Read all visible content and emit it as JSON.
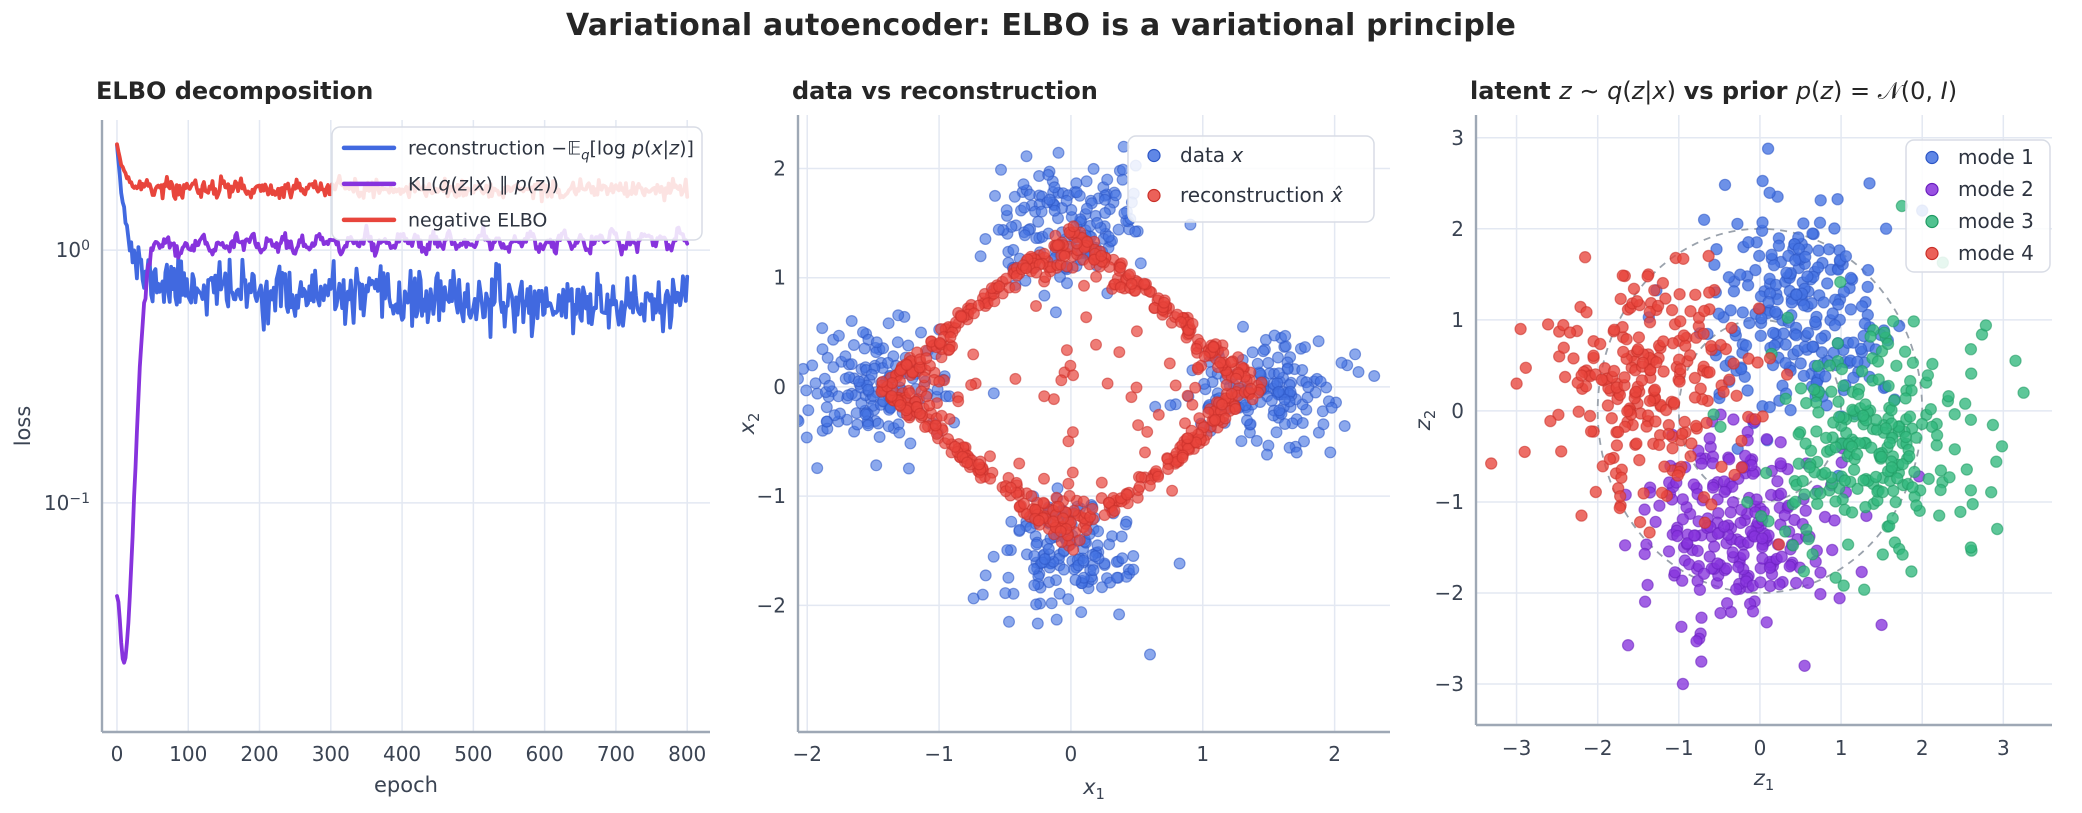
{
  "figure": {
    "title": "Variational autoencoder: ELBO is a variational principle"
  },
  "colors": {
    "blue": "#4169e0",
    "purple": "#8733dd",
    "red": "#e8453c",
    "green": "#31b77c",
    "grid": "#e3e8f2",
    "spine": "#9ea8b5",
    "tick_text": "#3a4352",
    "title_text": "#262626",
    "prior_circle": "#9aa2ac",
    "legend_border": "#d8dce5"
  },
  "chart_data": [
    {
      "id": "elbo-decomposition",
      "type": "line",
      "yscale": "log",
      "grid": true,
      "legend_position": "upper right",
      "title_segments": [
        [
          "ELBO decomposition",
          "b"
        ]
      ],
      "xlabel_segments": [
        [
          "epoch",
          "r"
        ]
      ],
      "ylabel_segments": [
        [
          "loss",
          "r"
        ]
      ],
      "xlim": [
        -21,
        832
      ],
      "ylim": [
        0.0124,
        3.27
      ],
      "x_ticks": [
        {
          "v": 0,
          "label": "0"
        },
        {
          "v": 100,
          "label": "100"
        },
        {
          "v": 200,
          "label": "200"
        },
        {
          "v": 300,
          "label": "300"
        },
        {
          "v": 400,
          "label": "400"
        },
        {
          "v": 500,
          "label": "500"
        },
        {
          "v": 600,
          "label": "600"
        },
        {
          "v": 700,
          "label": "700"
        },
        {
          "v": 800,
          "label": "800"
        }
      ],
      "y_ticks": [
        {
          "v": 1,
          "segments": [
            [
              "10",
              "r"
            ],
            [
              "0",
              "^"
            ]
          ]
        },
        {
          "v": 0.1,
          "segments": [
            [
              "10",
              "r"
            ],
            [
              "−1",
              "^"
            ]
          ]
        }
      ],
      "epochs": {
        "start": 0,
        "end": 800,
        "step": 2
      },
      "series": [
        {
          "name": "reconstruction −Eq[log p(x|z)]",
          "label_segments": [
            [
              "reconstruction −𝔼",
              "r"
            ],
            [
              "q",
              "iv"
            ],
            [
              "[log ",
              "r"
            ],
            [
              "p",
              "i"
            ],
            [
              "(",
              "r"
            ],
            [
              "x",
              "i"
            ],
            [
              "|",
              "r"
            ],
            [
              "z",
              "i"
            ],
            [
              ")]",
              "r"
            ]
          ],
          "model": "recon",
          "color": "#4169e0",
          "line_width": 3.8,
          "seed": 11,
          "params": {
            "start": 2.6,
            "plateau_base": 0.6,
            "plateau_amp": 0.18,
            "plateau_tau": 260,
            "decay_tau": 10,
            "noise_sd": 0.12,
            "noise_ramp": 30
          },
          "observed": {
            "start_value": 2.6,
            "plateau_early": 0.75,
            "final_value": 0.61
          }
        },
        {
          "name": "KL(q(z|x) ‖ p(z))",
          "label_segments": [
            [
              "KL(",
              "r"
            ],
            [
              "q",
              "i"
            ],
            [
              "(",
              "r"
            ],
            [
              "z",
              "i"
            ],
            [
              "|",
              "r"
            ],
            [
              "x",
              "i"
            ],
            [
              ") ∥ ",
              "r"
            ],
            [
              "p",
              "i"
            ],
            [
              "(",
              "r"
            ],
            [
              "z",
              "i"
            ],
            [
              "))",
              "r"
            ]
          ],
          "model": "kl",
          "color": "#8733dd",
          "line_width": 3.8,
          "seed": 22,
          "params": {
            "floor": 0.015,
            "dip_amp": 0.027,
            "dip_tau": 6,
            "plateau": 1.03,
            "rise_mid": 36,
            "rise_width": 5,
            "slow_rise": 6e-05,
            "noise_sd": 0.03,
            "wave1_amp": 0.045,
            "wave1_period": 23,
            "wave2_amp": 0.035,
            "wave2_period": 57,
            "noise_ramp": 50
          },
          "observed": {
            "start_value": 0.042,
            "dip_min": 0.016,
            "dip_epoch": 10,
            "plateau": 1.05,
            "final_value": 1.09
          }
        },
        {
          "name": "negative ELBO",
          "label_segments": [
            [
              "negative ELBO",
              "r"
            ]
          ],
          "model": "elbo",
          "color": "#e8453c",
          "line_width": 3.8,
          "seed": 33,
          "params": {
            "start": 2.62,
            "plateau": 1.76,
            "decay_tau": 9,
            "slow": -4e-05,
            "noise_sd": 0.042,
            "noise_ramp": 25
          },
          "observed": {
            "start_value": 2.62,
            "plateau": 1.74
          }
        }
      ]
    },
    {
      "id": "data-vs-reconstruction",
      "type": "scatter",
      "grid": true,
      "legend_position": "upper right",
      "title_segments": [
        [
          "data vs reconstruction",
          "b"
        ]
      ],
      "xlabel_segments": [
        [
          "x",
          "i"
        ],
        [
          "1",
          "v"
        ]
      ],
      "ylabel_segments": [
        [
          "x",
          "i"
        ],
        [
          "2",
          "v"
        ]
      ],
      "xlim": [
        -2.07,
        2.42
      ],
      "ylim": [
        -3.16,
        2.49
      ],
      "x_ticks": [
        {
          "v": -2,
          "label": "−2"
        },
        {
          "v": -1,
          "label": "−1"
        },
        {
          "v": 0,
          "label": "0"
        },
        {
          "v": 1,
          "label": "1"
        },
        {
          "v": 2,
          "label": "2"
        }
      ],
      "y_ticks": [
        {
          "v": 2,
          "label": "2"
        },
        {
          "v": 1,
          "label": "1"
        },
        {
          "v": 0,
          "label": "0"
        },
        {
          "v": -1,
          "label": "−1"
        },
        {
          "v": -2,
          "label": "−2"
        }
      ],
      "series": [
        {
          "name": "data x",
          "label_segments": [
            [
              "data ",
              "r"
            ],
            [
              "x",
              "i"
            ]
          ],
          "color": "#4472e2",
          "edge": "#2b55c4",
          "alpha": 0.62,
          "radius": 5.4,
          "seed": 101,
          "generator": {
            "kind": "gaussian",
            "means": [
              [
                0,
                1.5
              ],
              [
                1.5,
                0
              ],
              [
                0,
                -1.5
              ],
              [
                -1.5,
                0
              ]
            ],
            "std": 0.28,
            "n_per": 155
          },
          "extra_points": [
            [
              2.3,
              0.1
            ],
            [
              -2.15,
              -0.6
            ],
            [
              0.6,
              -2.45
            ],
            [
              0.4,
              2.2
            ]
          ]
        },
        {
          "name": "reconstruction x̂",
          "label_segments": [
            [
              "reconstruction ",
              "r"
            ],
            [
              "x̂",
              "i"
            ]
          ],
          "color": "#e8453c",
          "edge": "#c93029",
          "alpha": 0.7,
          "radius": 5.4,
          "seed": 202,
          "generator": {
            "kind": "diamond",
            "radius": 1.5,
            "edge_sd": 0.3,
            "inward_sd": 0.12,
            "tangent_sd": 0.012,
            "n": 600,
            "interior_n": 40,
            "interior_jitter": 0.06
          },
          "extra_points": []
        }
      ]
    },
    {
      "id": "latent-vs-prior",
      "type": "scatter",
      "grid": true,
      "legend_position": "upper right",
      "title_segments": [
        [
          "latent ",
          "b"
        ],
        [
          "z",
          "i"
        ],
        [
          " ∼ ",
          "r"
        ],
        [
          "q",
          "i"
        ],
        [
          "(",
          "r"
        ],
        [
          "z",
          "i"
        ],
        [
          "|",
          "r"
        ],
        [
          "x",
          "i"
        ],
        [
          ") ",
          "r"
        ],
        [
          "vs prior ",
          "b"
        ],
        [
          "p",
          "i"
        ],
        [
          "(",
          "r"
        ],
        [
          "z",
          "i"
        ],
        [
          ") = 𝒩(0, ",
          "r"
        ],
        [
          "I",
          "i"
        ],
        [
          ")",
          "r"
        ]
      ],
      "xlabel_segments": [
        [
          "z",
          "i"
        ],
        [
          "1",
          "v"
        ]
      ],
      "ylabel_segments": [
        [
          "z",
          "i"
        ],
        [
          "2",
          "v"
        ]
      ],
      "xlim": [
        -3.5,
        3.6
      ],
      "ylim": [
        -3.45,
        3.25
      ],
      "x_ticks": [
        {
          "v": -3,
          "label": "−3"
        },
        {
          "v": -2,
          "label": "−2"
        },
        {
          "v": -1,
          "label": "−1"
        },
        {
          "v": 0,
          "label": "0"
        },
        {
          "v": 1,
          "label": "1"
        },
        {
          "v": 2,
          "label": "2"
        },
        {
          "v": 3,
          "label": "3"
        }
      ],
      "y_ticks": [
        {
          "v": 3,
          "label": "3"
        },
        {
          "v": 2,
          "label": "2"
        },
        {
          "v": 1,
          "label": "1"
        },
        {
          "v": 0,
          "label": "0"
        },
        {
          "v": -1,
          "label": "−1"
        },
        {
          "v": -2,
          "label": "−2"
        },
        {
          "v": -3,
          "label": "−3"
        }
      ],
      "prior_circles": {
        "radii": [
          1,
          2
        ],
        "color": "#9aa2ac",
        "dash": "7 6",
        "width": 1.8
      },
      "series": [
        {
          "name": "mode 1",
          "label_segments": [
            [
              "mode 1",
              "r"
            ]
          ],
          "color": "#4472e2",
          "edge": "#2b55c4",
          "alpha": 0.78,
          "radius": 5.6,
          "seed": 301,
          "generator": {
            "kind": "gaussian",
            "means": [
              [
                0.45,
                1.1
              ]
            ],
            "std": 0.58,
            "n_per": 240
          },
          "extra_points": [
            [
              0.1,
              2.88
            ],
            [
              1.35,
              2.5
            ],
            [
              2.0,
              2.2
            ]
          ]
        },
        {
          "name": "mode 2",
          "label_segments": [
            [
              "mode 2",
              "r"
            ]
          ],
          "color": "#8733dd",
          "edge": "#6a1fbd",
          "alpha": 0.78,
          "radius": 5.6,
          "seed": 302,
          "generator": {
            "kind": "gaussian",
            "means": [
              [
                -0.2,
                -1.25
              ]
            ],
            "std": 0.58,
            "n_per": 240
          },
          "extra_points": [
            [
              -0.95,
              -3.0
            ],
            [
              0.55,
              -2.8
            ],
            [
              1.5,
              -2.35
            ]
          ]
        },
        {
          "name": "mode 3",
          "label_segments": [
            [
              "mode 3",
              "r"
            ]
          ],
          "color": "#31b77c",
          "edge": "#1f9a63",
          "alpha": 0.78,
          "radius": 5.6,
          "seed": 303,
          "generator": {
            "kind": "gaussian",
            "means": [
              [
                1.5,
                -0.4
              ]
            ],
            "std": 0.6,
            "n_per": 240
          },
          "extra_points": [
            [
              3.15,
              0.55
            ],
            [
              3.25,
              0.2
            ],
            [
              1.75,
              2.25
            ],
            [
              2.6,
              -1.5
            ]
          ]
        },
        {
          "name": "mode 4",
          "label_segments": [
            [
              "mode 4",
              "r"
            ]
          ],
          "color": "#e8453c",
          "edge": "#c92f28",
          "alpha": 0.78,
          "radius": 5.6,
          "seed": 304,
          "generator": {
            "kind": "gaussian",
            "means": [
              [
                -1.35,
                0.35
              ]
            ],
            "std": 0.6,
            "n_per": 240
          },
          "extra_points": [
            [
              -2.95,
              0.9
            ],
            [
              -3.0,
              0.3
            ],
            [
              -2.9,
              -0.45
            ],
            [
              -2.2,
              -1.15
            ]
          ]
        }
      ]
    }
  ]
}
